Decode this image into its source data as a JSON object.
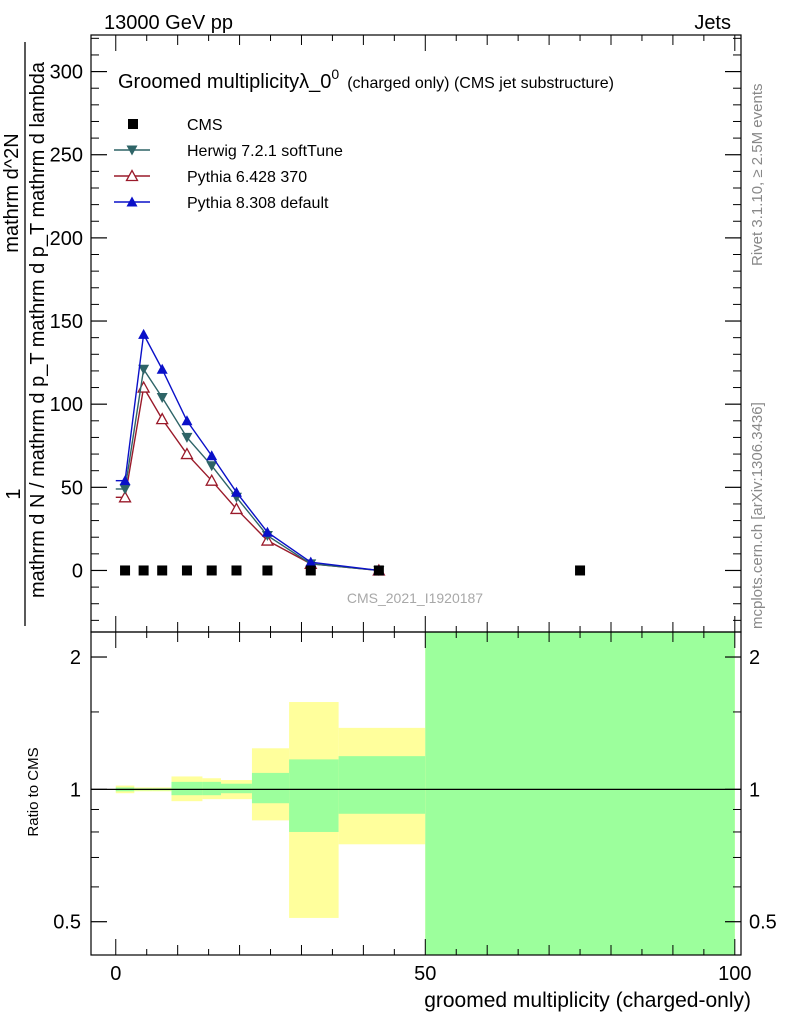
{
  "header": {
    "left": "13000 GeV pp",
    "right": "Jets"
  },
  "side_labels": {
    "rivet": "Rivet 3.1.10, ≥ 2.5M events",
    "mcplots": "mcplots.cern.ch [arXiv:1306.3436]"
  },
  "watermark": "CMS_2021_I1920187",
  "colors": {
    "cms": "#000000",
    "herwig": "#2e6467",
    "pythia6": "#9a1a2a",
    "pythia8": "#0a10c8",
    "band_inner": "#9cff9c",
    "band_outer": "#ffff9c"
  },
  "chart_data": [
    {
      "type": "line",
      "title": "Groomed multiplicityλ_0",
      "title_sup": "0",
      "title_suffix": "(charged only) (CMS jet substructure)",
      "ylabel_line1": "1",
      "ylabel_line2": "mathrm d N / mathrm d p_T mathrm d p_T mathrm d lambda",
      "ylabel_line3": "mathrm d^2N",
      "xlabel": "",
      "xlim": [
        -4,
        101
      ],
      "ylim": [
        -37,
        322
      ],
      "yticks": [
        0,
        50,
        100,
        150,
        200,
        250,
        300
      ],
      "series": [
        {
          "name": "CMS",
          "marker": "square",
          "x": [
            1.5,
            4.5,
            7.5,
            11.5,
            15.5,
            19.5,
            24.5,
            31.5,
            42.5,
            75
          ],
          "y": [
            0,
            0,
            0,
            0,
            0,
            0,
            0,
            0,
            0,
            0
          ]
        },
        {
          "name": "Herwig 7.2.1 softTune",
          "marker": "triangle-down",
          "x": [
            1.5,
            4.5,
            7.5,
            11.5,
            15.5,
            19.5,
            24.5,
            31.5,
            42.5
          ],
          "y": [
            49,
            121,
            104,
            80,
            63,
            44,
            21,
            4,
            0
          ]
        },
        {
          "name": "Pythia 6.428 370",
          "marker": "triangle-up-open",
          "x": [
            1.5,
            4.5,
            7.5,
            11.5,
            15.5,
            19.5,
            24.5,
            31.5,
            42.5
          ],
          "y": [
            44,
            110,
            91,
            70,
            54,
            37,
            18,
            4,
            0
          ]
        },
        {
          "name": "Pythia 8.308 default",
          "marker": "triangle-up",
          "x": [
            1.5,
            4.5,
            7.5,
            11.5,
            15.5,
            19.5,
            24.5,
            31.5,
            42.5
          ],
          "y": [
            54,
            142,
            121,
            90,
            69,
            47,
            23,
            5,
            0
          ]
        }
      ]
    },
    {
      "type": "area",
      "title": "",
      "xlabel": "groomed multiplicity (charged-only)",
      "ylabel": "Ratio to CMS",
      "xlim": [
        -4,
        101
      ],
      "ylim": [
        0.42,
        2.28
      ],
      "log_y": true,
      "xticks": [
        0,
        50,
        100
      ],
      "yticks": [
        0.5,
        1,
        2
      ],
      "ytick_labels": [
        "0.5",
        "1",
        "2"
      ],
      "bands": [
        {
          "x0": 0,
          "x1": 3,
          "inner": [
            0.99,
            1.01
          ],
          "outer": [
            0.98,
            1.02
          ]
        },
        {
          "x0": 3,
          "x1": 6,
          "inner": [
            0.995,
            1.005
          ],
          "outer": [
            0.99,
            1.01
          ]
        },
        {
          "x0": 6,
          "x1": 9,
          "inner": [
            0.995,
            1.005
          ],
          "outer": [
            0.99,
            1.01
          ]
        },
        {
          "x0": 9,
          "x1": 14,
          "inner": [
            0.97,
            1.04
          ],
          "outer": [
            0.94,
            1.07
          ]
        },
        {
          "x0": 14,
          "x1": 17,
          "inner": [
            0.97,
            1.04
          ],
          "outer": [
            0.95,
            1.06
          ]
        },
        {
          "x0": 17,
          "x1": 22,
          "inner": [
            0.98,
            1.03
          ],
          "outer": [
            0.95,
            1.05
          ]
        },
        {
          "x0": 22,
          "x1": 28,
          "inner": [
            0.93,
            1.09
          ],
          "outer": [
            0.85,
            1.24
          ]
        },
        {
          "x0": 28,
          "x1": 36,
          "inner": [
            0.8,
            1.17
          ],
          "outer": [
            0.51,
            1.58
          ]
        },
        {
          "x0": 36,
          "x1": 50,
          "inner": [
            0.88,
            1.19
          ],
          "outer": [
            0.75,
            1.38
          ]
        },
        {
          "x0": 50,
          "x1": 100,
          "inner": [
            0.42,
            2.28
          ],
          "outer": [
            0.42,
            2.28
          ]
        }
      ],
      "reference_line": 1
    }
  ]
}
